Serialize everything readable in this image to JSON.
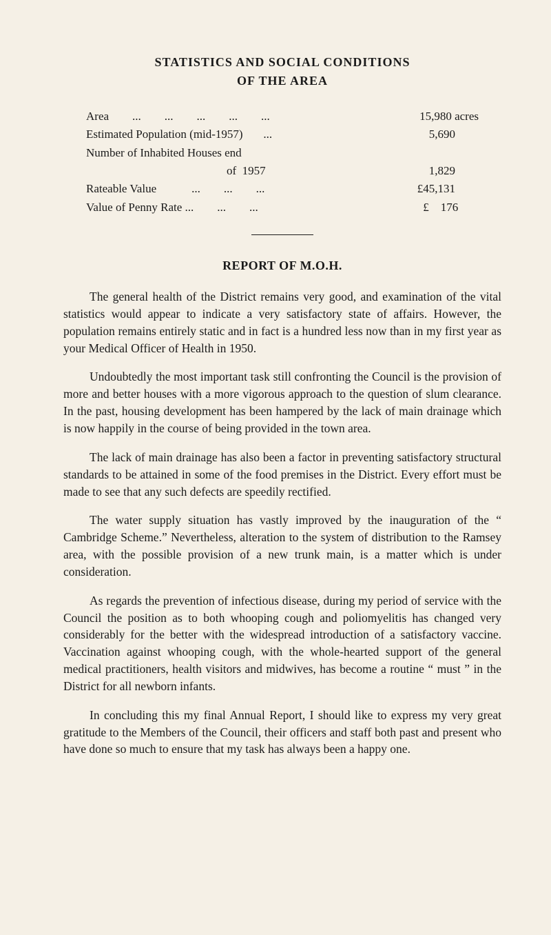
{
  "title": "STATISTICS AND SOCIAL CONDITIONS",
  "subtitle": "OF THE AREA",
  "stats": {
    "rows": [
      {
        "label": "Area        ...        ...        ...        ...        ...",
        "value": "15,980 acres"
      },
      {
        "label": "Estimated Population (mid-1957)       ...",
        "value": "5,690        "
      },
      {
        "label": "Number of Inhabited Houses end",
        "value": ""
      },
      {
        "label": "                                                of  1957",
        "value": "1,829        "
      },
      {
        "label": "Rateable Value            ...        ...        ...",
        "value": "£45,131        "
      },
      {
        "label": "Value of Penny Rate ...        ...        ...",
        "value": "£    176       "
      }
    ]
  },
  "section_heading": "REPORT OF M.O.H.",
  "paragraphs": [
    "The general health of the District remains very good, and examination of the vital statistics would appear to indicate a very satisfactory state of affairs.    However, the population remains entirely static and in fact is a hundred less now than in my first year as your Medical Officer of Health in 1950.",
    "Undoubtedly the most important task still confronting the Council is the provision of more and better houses with a more vigorous approach to the question of slum clearance.  In the past, housing development has been hampered by the lack of main drainage which is now happily in the course of being provided in the town area.",
    "The lack of main drainage has also been a factor in preventing satisfactory structural standards to be attained in some of the food premises in the District.  Every effort must be made to see that any such defects are speedily rectified.",
    "The water supply situation has vastly improved by the inauguration of the “ Cambridge Scheme.”  Nevertheless, alteration to the system of distribution to the Ramsey area, with the possible provision of a new trunk main, is a matter which is under consideration.",
    "As regards the prevention of infectious disease, during my period of service with the Council the position as to both whooping cough and poliomyelitis has changed very considerably for the better with the widespread introduction of a satisfactory vaccine. Vaccination against whooping cough, with the whole-hearted support of the general medical practitioners, health visitors and midwives, has become a routine “ must ” in the District for all newborn infants.",
    "In concluding this my final Annual Report, I should like to express my very great gratitude to the Members of the Council, their officers and staff both past and present who have done so much to ensure that my task has always been a happy one."
  ],
  "colors": {
    "background": "#f5f0e6",
    "text": "#1a1a1a"
  },
  "typography": {
    "body_fontsize": 17.5,
    "heading_fontsize": 18,
    "font_family": "Times New Roman"
  }
}
